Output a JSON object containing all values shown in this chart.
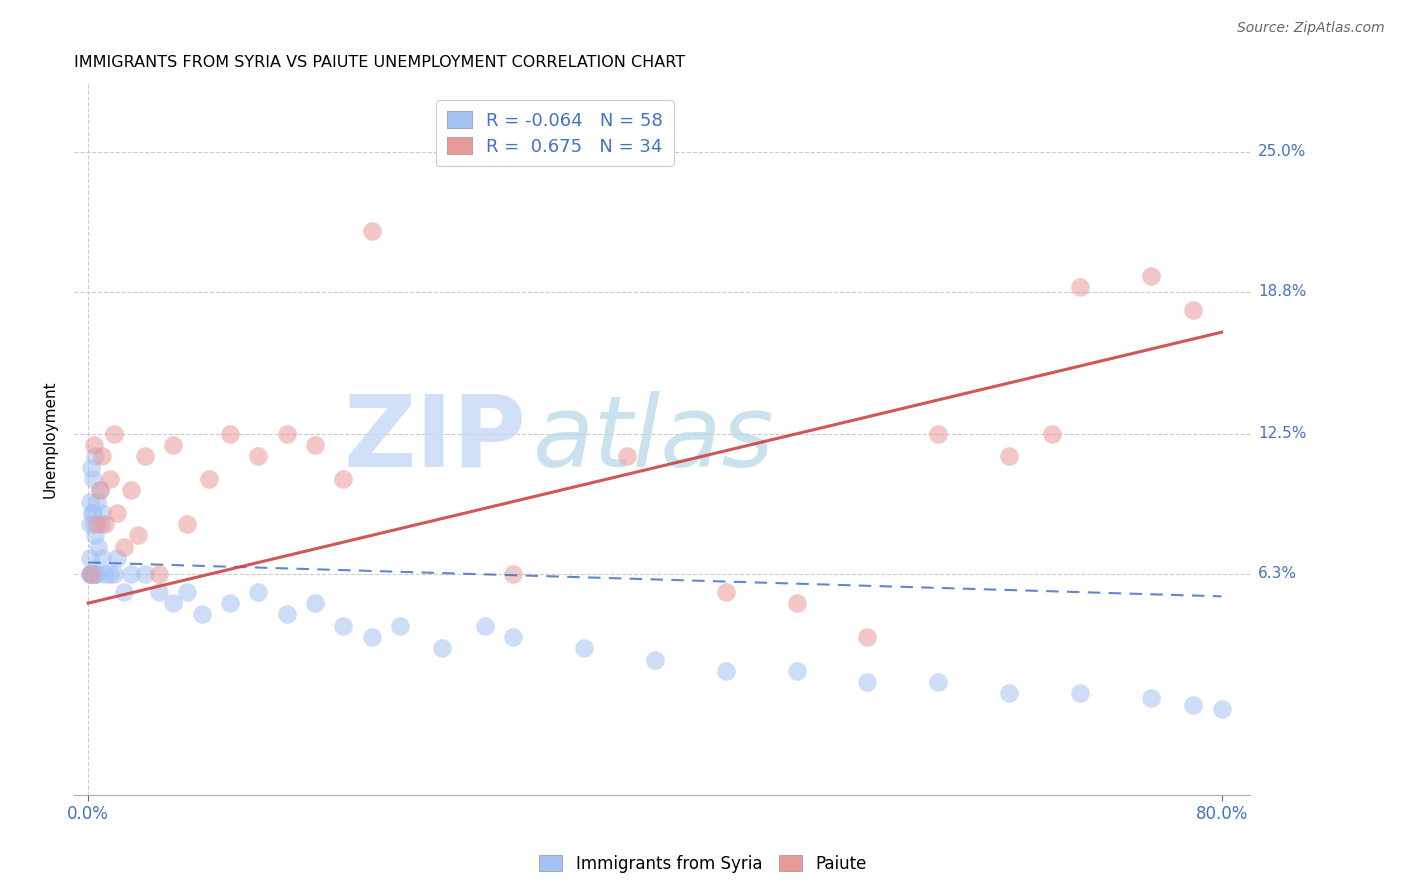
{
  "title": "IMMIGRANTS FROM SYRIA VS PAIUTE UNEMPLOYMENT CORRELATION CHART",
  "source": "Source: ZipAtlas.com",
  "ylabel": "Unemployment",
  "x_tick_labels": [
    "0.0%",
    "80.0%"
  ],
  "x_tick_positions": [
    0.0,
    80.0
  ],
  "y_tick_labels": [
    "6.3%",
    "12.5%",
    "18.8%",
    "25.0%"
  ],
  "y_tick_values": [
    6.3,
    12.5,
    18.8,
    25.0
  ],
  "xlim": [
    -1.0,
    82.0
  ],
  "ylim": [
    -3.5,
    28.0
  ],
  "legend_r_blue": "-0.064",
  "legend_n_blue": "58",
  "legend_r_pink": "0.675",
  "legend_n_pink": "34",
  "blue_color": "#a4c2f4",
  "pink_color": "#ea9999",
  "blue_line_color": "#4472c4",
  "pink_line_color": "#cc4444",
  "grid_color": "#cccccc",
  "watermark_zip_color": "#c9daf8",
  "watermark_atlas_color": "#b4d7e8",
  "syria_x": [
    0.1,
    0.1,
    0.1,
    0.15,
    0.15,
    0.2,
    0.2,
    0.25,
    0.25,
    0.3,
    0.3,
    0.35,
    0.35,
    0.4,
    0.4,
    0.45,
    0.5,
    0.5,
    0.5,
    0.6,
    0.6,
    0.7,
    0.8,
    0.9,
    1.0,
    1.0,
    1.2,
    1.5,
    1.8,
    2.0,
    2.5,
    3.0,
    4.0,
    5.0,
    6.0,
    7.0,
    8.0,
    10.0,
    12.0,
    14.0,
    16.0,
    18.0,
    20.0,
    22.0,
    25.0,
    28.0,
    30.0,
    35.0,
    40.0,
    45.0,
    50.0,
    55.0,
    60.0,
    65.0,
    70.0,
    75.0,
    78.0,
    80.0
  ],
  "syria_y": [
    8.5,
    7.0,
    6.3,
    9.5,
    6.3,
    11.0,
    6.3,
    9.0,
    6.3,
    10.5,
    6.3,
    9.0,
    6.3,
    8.5,
    6.3,
    6.3,
    11.5,
    8.0,
    6.3,
    9.5,
    6.3,
    7.5,
    10.0,
    8.5,
    9.0,
    7.0,
    6.3,
    6.3,
    6.3,
    7.0,
    5.5,
    6.3,
    6.3,
    5.5,
    5.0,
    5.5,
    4.5,
    5.0,
    5.5,
    4.5,
    5.0,
    4.0,
    3.5,
    4.0,
    3.0,
    4.0,
    3.5,
    3.0,
    2.5,
    2.0,
    2.0,
    1.5,
    1.5,
    1.0,
    1.0,
    0.8,
    0.5,
    0.3
  ],
  "paiute_x": [
    0.2,
    0.4,
    0.6,
    0.8,
    1.0,
    1.2,
    1.5,
    1.8,
    2.0,
    2.5,
    3.0,
    3.5,
    4.0,
    5.0,
    6.0,
    7.0,
    8.5,
    10.0,
    12.0,
    14.0,
    16.0,
    18.0,
    20.0,
    30.0,
    38.0,
    45.0,
    50.0,
    55.0,
    60.0,
    65.0,
    68.0,
    70.0,
    75.0,
    78.0
  ],
  "paiute_y": [
    6.3,
    12.0,
    8.5,
    10.0,
    11.5,
    8.5,
    10.5,
    12.5,
    9.0,
    7.5,
    10.0,
    8.0,
    11.5,
    6.3,
    12.0,
    8.5,
    10.5,
    12.5,
    11.5,
    12.5,
    12.0,
    10.5,
    21.5,
    6.3,
    11.5,
    5.5,
    5.0,
    3.5,
    12.5,
    11.5,
    12.5,
    19.0,
    19.5,
    18.0
  ],
  "blue_line_x": [
    0.0,
    80.0
  ],
  "blue_line_y": [
    6.8,
    5.3
  ],
  "pink_line_x": [
    0.0,
    80.0
  ],
  "pink_line_y": [
    5.0,
    17.0
  ]
}
